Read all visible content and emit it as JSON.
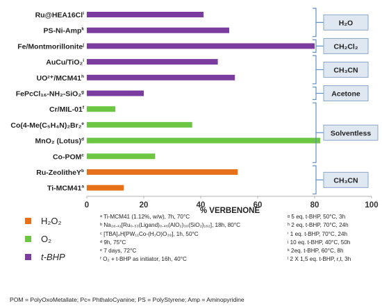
{
  "chart_data": {
    "type": "bar",
    "orientation": "horizontal",
    "xlabel": "% VERBENONE",
    "xlim": [
      0,
      100
    ],
    "xticks": [
      "0",
      "20",
      "40",
      "60",
      "80",
      "100"
    ],
    "grid": false,
    "categories": [
      {
        "label": "Ru@HEA16Cl",
        "sup": "i",
        "value": 41,
        "oxidant": "t-BHP"
      },
      {
        "label": "PS-Ni-Amp",
        "sup": "k",
        "value": 50,
        "oxidant": "t-BHP"
      },
      {
        "label": "Fe/Montmorillonite",
        "sup": "j",
        "value": 80,
        "oxidant": "t-BHP"
      },
      {
        "label": "AuCu/TiO₂",
        "sup": "i",
        "value": 46,
        "oxidant": "t-BHP"
      },
      {
        "label": "UO²⁺/MCM41",
        "sup": "h",
        "value": 52,
        "oxidant": "t-BHP"
      },
      {
        "label": "FePcCl₁₆-NH₂-SiO₂",
        "sup": "g",
        "value": 20,
        "oxidant": "t-BHP"
      },
      {
        "label": "Cr/MIL-01",
        "sup": "f",
        "value": 10,
        "oxidant": "O2"
      },
      {
        "label": "Co(4-Me(C₅H₄N)₂Br₂",
        "sup": "e",
        "value": 37,
        "oxidant": "O2"
      },
      {
        "label": "MnO₂ (Lotus)",
        "sup": "d",
        "value": 82,
        "oxidant": "O2"
      },
      {
        "label": "Co-POM",
        "sup": "c",
        "value": 24,
        "oxidant": "O2"
      },
      {
        "label": "Ru-ZeolitheY",
        "sup": "b",
        "value": 53,
        "oxidant": "H2O2"
      },
      {
        "label": "Ti-MCM41",
        "sup": "a",
        "value": 13,
        "oxidant": "H2O2"
      }
    ],
    "solvent_groups": [
      {
        "label": "H₂O",
        "from": 0,
        "to": 1
      },
      {
        "label": "CH₂Cl₂",
        "from": 2,
        "to": 2
      },
      {
        "label": "CH₃CN",
        "from": 3,
        "to": 4
      },
      {
        "label": "Acetone",
        "from": 5,
        "to": 5
      },
      {
        "label": "Solventless",
        "from": 6,
        "to": 9
      },
      {
        "label": "CH₃CN",
        "from": 10,
        "to": 11
      }
    ],
    "series": [
      {
        "name": "H₂O₂",
        "key": "H2O2",
        "color": "#e8701a"
      },
      {
        "name": "O₂",
        "key": "O2",
        "color": "#6cc644"
      },
      {
        "name": "t-BHP",
        "key": "t-BHP",
        "color": "#7a3c9e"
      }
    ]
  },
  "legend": {
    "items": [
      {
        "label": "H₂O₂",
        "color": "#e8701a"
      },
      {
        "label": "O₂",
        "color": "#6cc644"
      },
      {
        "label": "t-BHP",
        "color": "#7a3c9e"
      }
    ]
  },
  "notes": {
    "col1": [
      "ᵃ Ti-MCM41 (1.12%, w/w), 7h, 70°C",
      "ᵇ Na₂₈.₄₁[Ru₀.₅₃(Ligand)₀.₄₆(AlO₂)₃₀(SiO₂)₁₆₂], 18h, 80°C",
      "ᶜ [TBA]₄H[PW₁₁Co-(H₂O)O₃₉], 1h, 50°C",
      "ᵈ 9h, 75°C",
      "ᵉ 7 days, 72°C",
      "ᶠ O₂ + t-BHP as initiator, 16h, 40°C"
    ],
    "col2": [
      "ᵍ 5 eq. t-BHP, 50°C, 3h",
      "ʰ 2 eq. t-BHP, 70°C, 24h",
      "ⁱ 1 eq. t-BHP, 70°C, 24h",
      "ʲ 10 eq. t-BHP, 40°C, 50h",
      "ᵏ 2eq. t-BHP, 60°C, 8h",
      "ˡ 2 X 1,5 eq. t-BHP, r,t, 3h"
    ]
  },
  "footnote": "POM = PolyOxoMetallate; Pc= PhthaloCyanine; PS = PolyStyrene;  Amp = Aminopyridine",
  "colors": {
    "axis": "#b0b0b0",
    "bracket": "#5a8fd0",
    "box_fill": "#dfe7f1",
    "box_stroke": "#8aa7c9"
  }
}
